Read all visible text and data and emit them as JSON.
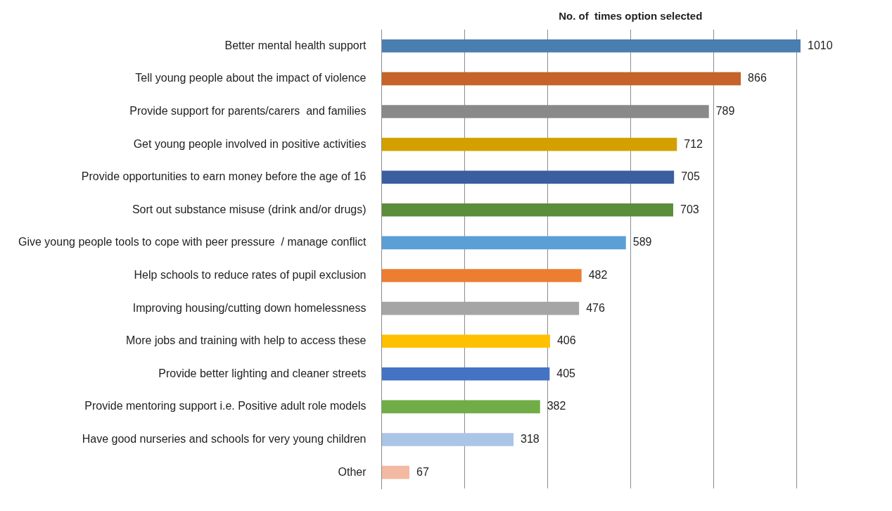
{
  "chart_data": {
    "type": "bar",
    "orientation": "horizontal",
    "title": "No. of  times option selected",
    "categories": [
      "Better mental health support",
      "Tell young people about the impact of violence",
      "Provide support for parents/carers  and families",
      "Get young people involved in positive activities",
      "Provide opportunities to earn money before the age of 16",
      "Sort out substance misuse (drink and/or drugs)",
      "Give young people tools to cope with peer pressure  / manage conflict",
      "Help schools to reduce rates of pupil exclusion",
      "Improving housing/cutting down homelessness",
      "More jobs and training with help to access these",
      "Provide better lighting and cleaner streets",
      "Provide mentoring support i.e. Positive adult role models",
      "Have good nurseries and schools for very young children",
      "Other"
    ],
    "values": [
      1010,
      866,
      789,
      712,
      705,
      703,
      589,
      482,
      476,
      406,
      405,
      382,
      318,
      67
    ],
    "colors": [
      "#4a7eb0",
      "#c5632a",
      "#898989",
      "#d3a000",
      "#3a5e9f",
      "#5a8e3a",
      "#5b9fd6",
      "#ed7d31",
      "#a5a5a5",
      "#ffc000",
      "#4472c4",
      "#70ad47",
      "#abc5e6",
      "#f4b9a2"
    ],
    "xticks": [
      {
        "value": 0,
        "label": null
      },
      {
        "value": 200,
        "label": null
      },
      {
        "value": 400,
        "label": null
      },
      {
        "value": 600,
        "label": null
      },
      {
        "value": 800,
        "label": null
      },
      {
        "value": 1000,
        "label": null
      }
    ],
    "grid": "x",
    "data_labels": true,
    "legend": false
  }
}
